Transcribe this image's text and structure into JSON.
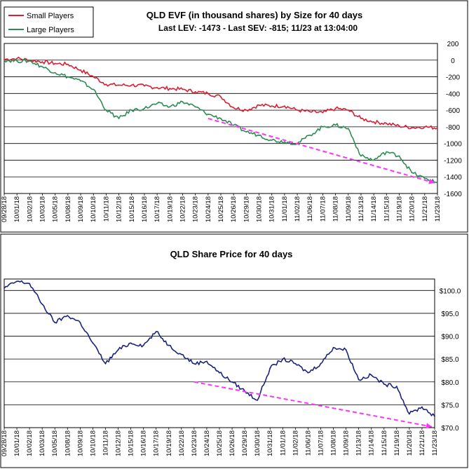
{
  "chart_data": [
    {
      "type": "line",
      "title": "QLD EVF (in thousand shares) by Size for 40 days",
      "subtitle": "Last LEV: -1473 - Last SEV: -815; 11/23 at 13:04:00",
      "ylim": [
        -1600,
        200
      ],
      "yticks": [
        "200",
        "0",
        "-200",
        "-400",
        "-600",
        "-800",
        "-1000",
        "-1200",
        "-1400",
        "-1600"
      ],
      "ytick_values": [
        200,
        0,
        -200,
        -400,
        -600,
        -800,
        -1000,
        -1200,
        -1400,
        -1600
      ],
      "categories": [
        "09/28/18",
        "10/01/18",
        "10/02/18",
        "10/03/18",
        "10/05/18",
        "10/08/18",
        "10/09/18",
        "10/10/18",
        "10/11/18",
        "10/12/18",
        "10/15/18",
        "10/16/18",
        "10/17/18",
        "10/19/18",
        "10/22/18",
        "10/23/18",
        "10/24/18",
        "10/25/18",
        "10/26/18",
        "10/29/18",
        "10/30/18",
        "10/31/18",
        "11/01/18",
        "11/02/18",
        "11/06/18",
        "11/07/18",
        "11/08/18",
        "11/09/18",
        "11/13/18",
        "11/14/18",
        "11/15/18",
        "11/19/18",
        "11/20/18",
        "11/21/18",
        "11/23/18"
      ],
      "series": [
        {
          "name": "Small Players",
          "color": "#dc1e32",
          "values": [
            10,
            20,
            0,
            -20,
            -40,
            -50,
            -120,
            -200,
            -290,
            -300,
            -300,
            -310,
            -330,
            -340,
            -350,
            -380,
            -400,
            -440,
            -570,
            -600,
            -540,
            -550,
            -550,
            -600,
            -620,
            -630,
            -580,
            -600,
            -700,
            -740,
            -760,
            -790,
            -810,
            -800,
            -815
          ]
        },
        {
          "name": "Large Players",
          "color": "#2e8b57",
          "values": [
            0,
            -10,
            -10,
            -80,
            -150,
            -200,
            -250,
            -350,
            -600,
            -700,
            -600,
            -580,
            -520,
            -560,
            -500,
            -560,
            -650,
            -700,
            -780,
            -860,
            -900,
            -960,
            -980,
            -1000,
            -900,
            -800,
            -780,
            -820,
            -1150,
            -1200,
            -1100,
            -1150,
            -1350,
            -1420,
            -1473
          ]
        }
      ],
      "trendline": {
        "color": "#ff33ff",
        "from": {
          "x": "10/24/18",
          "y": -700
        },
        "to": {
          "x": "11/23/18",
          "y": -1473
        }
      },
      "legend_position": "top-left",
      "grid": true
    },
    {
      "type": "line",
      "title": "QLD Share Price for 40 days",
      "ylim": [
        70,
        102.5
      ],
      "yticks": [
        "$100.0",
        "$95.0",
        "$90.0",
        "$85.0",
        "$80.0",
        "$75.0",
        "$70.0"
      ],
      "ytick_values": [
        100,
        95,
        90,
        85,
        80,
        75,
        70
      ],
      "categories": [
        "09/28/18",
        "10/01/18",
        "10/02/18",
        "10/03/18",
        "10/05/18",
        "10/08/18",
        "10/09/18",
        "10/10/18",
        "10/11/18",
        "10/12/18",
        "10/15/18",
        "10/16/18",
        "10/17/18",
        "10/19/18",
        "10/22/18",
        "10/23/18",
        "10/24/18",
        "10/25/18",
        "10/26/18",
        "10/29/18",
        "10/30/18",
        "10/31/18",
        "11/01/18",
        "11/02/18",
        "11/06/18",
        "11/07/18",
        "11/08/18",
        "11/09/18",
        "11/13/18",
        "11/14/18",
        "11/15/18",
        "11/19/18",
        "11/20/18",
        "11/21/18",
        "11/23/18"
      ],
      "series": [
        {
          "name": "Price",
          "color": "#1a237e",
          "values": [
            100.5,
            102.0,
            101.5,
            97.0,
            93.0,
            94.5,
            93.0,
            88.5,
            84.0,
            87.0,
            88.5,
            88.0,
            91.0,
            88.0,
            86.0,
            84.0,
            84.5,
            82.0,
            80.0,
            78.0,
            76.0,
            83.0,
            85.0,
            84.0,
            82.0,
            84.0,
            87.5,
            87.0,
            80.5,
            81.5,
            79.5,
            79.0,
            73.0,
            74.5,
            72.5
          ]
        }
      ],
      "trendline": {
        "color": "#ff33ff",
        "from": {
          "x": "10/23/18",
          "y": 80.0
        },
        "to": {
          "x": "11/23/18",
          "y": 70.2
        }
      },
      "grid": true
    }
  ]
}
